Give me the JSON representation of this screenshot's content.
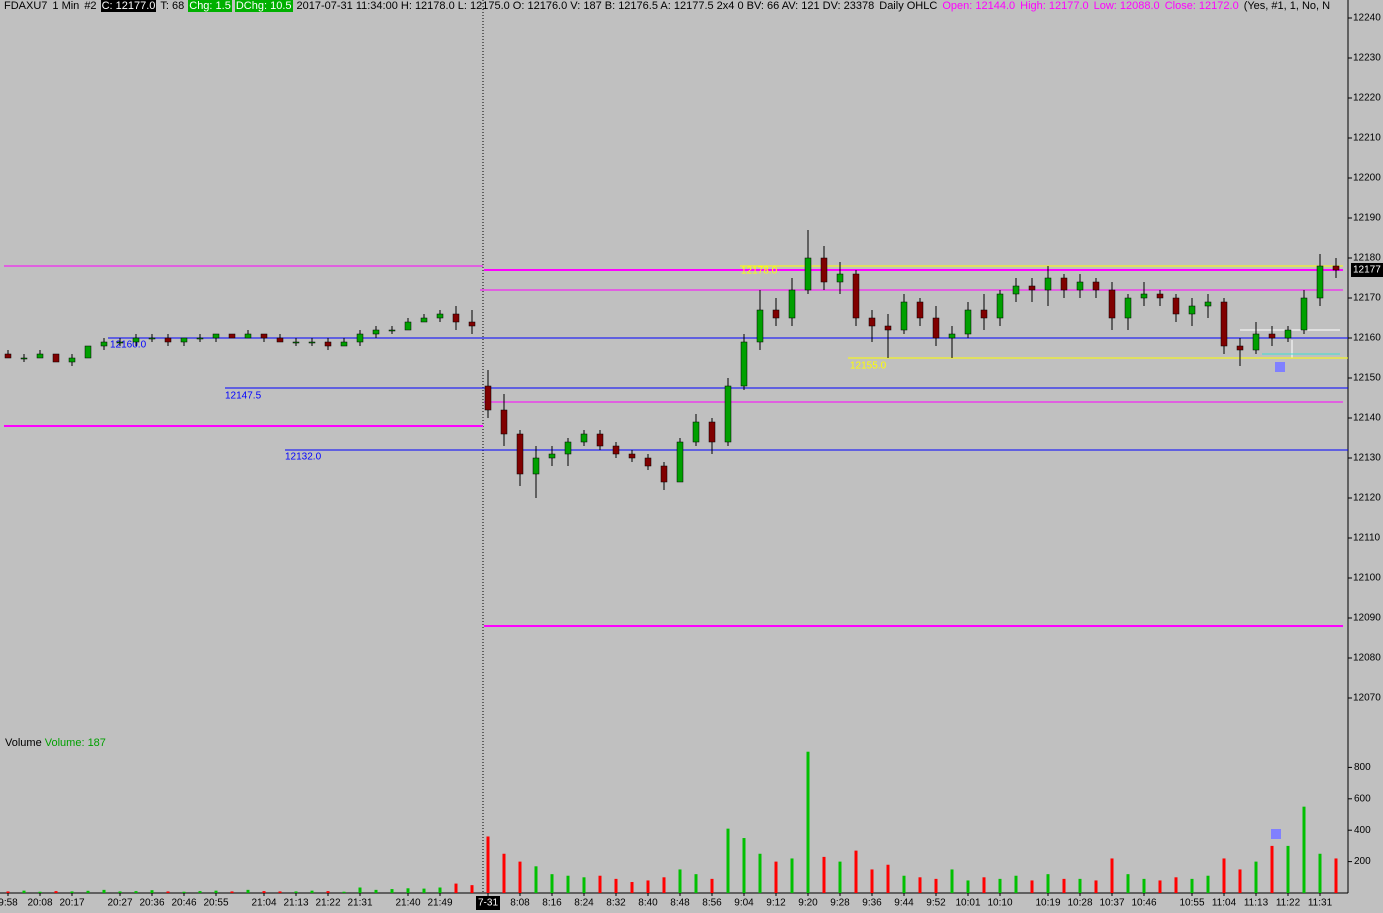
{
  "header": {
    "symbol": "FDAXU7",
    "interval": "1 Min",
    "chart_no": "#2",
    "close": "C: 12177.0",
    "trades": "T: 68",
    "change": "Chg: 1.5",
    "daily_change": "DChg: 10.5",
    "info": "2017-07-31 11:34:00 H: 12178.0 L: 12175.0 O: 12176.0 V: 187 B: 12176.5 A: 12177.5 2x4 0 BV: 66 AV: 121 DV: 23378",
    "study": "Daily OHLC",
    "open": "Open: 12144.0",
    "high": "High: 12177.0",
    "low": "Low: 12088.0",
    "close_daily": "Close: 12172.0",
    "flags": "(Yes, #1, 1, No, N"
  },
  "chart_data": {
    "type": "candlestick",
    "categories": [
      "9:58",
      null,
      "20:08",
      null,
      "20:17",
      null,
      null,
      "20:27",
      null,
      "20:36",
      null,
      "20:46",
      null,
      "20:55",
      null,
      null,
      "21:04",
      null,
      "21:13",
      null,
      "21:22",
      null,
      "21:31",
      null,
      null,
      "21:40",
      null,
      "21:49",
      null,
      null,
      "7-31",
      null,
      "8:08",
      null,
      "8:16",
      null,
      "8:24",
      null,
      "8:32",
      null,
      "8:40",
      null,
      "8:48",
      null,
      "8:56",
      null,
      "9:04",
      null,
      "9:12",
      null,
      "9:20",
      null,
      "9:28",
      null,
      "9:36",
      null,
      "9:44",
      null,
      "9:52",
      null,
      "10:01",
      null,
      "10:10",
      null,
      null,
      "10:19",
      null,
      "10:28",
      null,
      "10:37",
      null,
      "10:46",
      null,
      null,
      "10:55",
      null,
      "11:04",
      null,
      "11:13",
      null,
      "11:22",
      null,
      "11:31",
      null
    ],
    "open": [
      12156,
      12155,
      12155,
      12156,
      12154,
      12155,
      12158,
      12159,
      12159,
      12160,
      12160,
      12159,
      12160,
      12160,
      12161,
      12160,
      12161,
      12160,
      12159,
      12159,
      12159,
      12158,
      12159,
      12161,
      12162,
      12162,
      12164,
      12165,
      12166,
      12164,
      12148,
      12142,
      12136,
      12126,
      12130,
      12131,
      12134,
      12136,
      12133,
      12131,
      12130,
      12128,
      12124,
      12134,
      12139,
      12134,
      12148,
      12159,
      12167,
      12165,
      12172,
      12180,
      12174,
      12176,
      12165,
      12163,
      12162,
      12169,
      12165,
      12160,
      12161,
      12167,
      12165,
      12171,
      12173,
      12172,
      12175,
      12172,
      12174,
      12172,
      12165,
      12170,
      12171,
      12170,
      12166,
      12168,
      12169,
      12158,
      12157,
      12161,
      12160,
      12162,
      12170,
      12178
    ],
    "high": [
      12157,
      12156,
      12157,
      12156,
      12156,
      12158,
      12160,
      12160,
      12161,
      12161,
      12161,
      12160,
      12161,
      12161,
      12161,
      12162,
      12161,
      12161,
      12160,
      12160,
      12160,
      12160,
      12162,
      12163,
      12163,
      12165,
      12166,
      12167,
      12168,
      12167,
      12152,
      12146,
      12137,
      12133,
      12133,
      12135,
      12137,
      12137,
      12134,
      12132,
      12131,
      12129,
      12135,
      12141,
      12140,
      12150,
      12161,
      12172,
      12170,
      12175,
      12187,
      12183,
      12179,
      12177,
      12167,
      12166,
      12171,
      12170,
      12168,
      12163,
      12169,
      12171,
      12172,
      12175,
      12175,
      12178,
      12176,
      12176,
      12175,
      12174,
      12171,
      12174,
      12172,
      12171,
      12170,
      12171,
      12170,
      12160,
      12164,
      12163,
      12163,
      12172,
      12181,
      12180
    ],
    "low": [
      12155,
      12154,
      12155,
      12154,
      12153,
      12155,
      12157,
      12158,
      12158,
      12159,
      12158,
      12158,
      12159,
      12159,
      12160,
      12160,
      12159,
      12159,
      12158,
      12158,
      12157,
      12158,
      12158,
      12160,
      12161,
      12162,
      12164,
      12164,
      12162,
      12161,
      12140,
      12133,
      12123,
      12120,
      12128,
      12128,
      12133,
      12132,
      12130,
      12129,
      12127,
      12122,
      12124,
      12133,
      12131,
      12133,
      12147,
      12157,
      12163,
      12163,
      12171,
      12172,
      12171,
      12163,
      12159,
      12155,
      12161,
      12163,
      12158,
      12155,
      12160,
      12162,
      12163,
      12169,
      12169,
      12168,
      12170,
      12170,
      12170,
      12162,
      12162,
      12168,
      12168,
      12164,
      12163,
      12165,
      12156,
      12153,
      12156,
      12158,
      12159,
      12161,
      12168,
      12175
    ],
    "close": [
      12155,
      12155,
      12156,
      12154,
      12155,
      12158,
      12159,
      12159,
      12160,
      12160,
      12159,
      12160,
      12160,
      12161,
      12160,
      12161,
      12160,
      12159,
      12159,
      12159,
      12158,
      12159,
      12161,
      12162,
      12162,
      12164,
      12165,
      12166,
      12164,
      12163,
      12142,
      12136,
      12126,
      12130,
      12131,
      12134,
      12136,
      12133,
      12131,
      12130,
      12128,
      12124,
      12134,
      12139,
      12134,
      12148,
      12159,
      12167,
      12165,
      12172,
      12180,
      12174,
      12176,
      12165,
      12163,
      12162,
      12169,
      12165,
      12160,
      12161,
      12167,
      12165,
      12171,
      12173,
      12172,
      12175,
      12172,
      12174,
      12172,
      12165,
      12170,
      12171,
      12170,
      12166,
      12168,
      12169,
      12158,
      12157,
      12161,
      12160,
      12162,
      12170,
      12178,
      12177
    ],
    "up_color": "#00a000",
    "down_color": "#800000",
    "ylim": [
      12059.5,
      12244.5
    ],
    "yticks": [
      12240,
      12230,
      12220,
      12210,
      12200,
      12190,
      12180,
      12170,
      12160,
      12150,
      12140,
      12130,
      12120,
      12110,
      12100,
      12090,
      12080,
      12070
    ],
    "last_price_label": "12177",
    "levels": [
      {
        "value": 12178,
        "color": "#ff00ff"
      },
      {
        "value": 12177,
        "color": "#ff00ff"
      },
      {
        "value": 12172,
        "color": "#ff00ff"
      },
      {
        "value": 12160,
        "color": "#0000ff",
        "label": "12160.0"
      },
      {
        "value": 12147.5,
        "color": "#0000ff",
        "label": "12147.5"
      },
      {
        "value": 12132,
        "color": "#0000ff",
        "label": "12132.0"
      },
      {
        "value": 12144,
        "color": "#ff00ff"
      },
      {
        "value": 12138,
        "color": "#ff00ff"
      },
      {
        "value": 12088,
        "color": "#ff00ff"
      },
      {
        "value": 12178,
        "color": "#ffff00",
        "label": "12178.0"
      },
      {
        "value": 12155,
        "color": "#ffff00",
        "label": "12155.0"
      }
    ],
    "volume": {
      "title": "Volume",
      "label": "Volume: 187",
      "up_color": "#00c000",
      "down_color": "#ff0000",
      "values": [
        10,
        15,
        8,
        12,
        10,
        14,
        20,
        10,
        12,
        18,
        10,
        8,
        12,
        15,
        10,
        20,
        12,
        10,
        10,
        15,
        12,
        8,
        35,
        20,
        25,
        30,
        28,
        35,
        60,
        50,
        360,
        250,
        200,
        170,
        120,
        110,
        100,
        110,
        90,
        70,
        80,
        100,
        150,
        120,
        90,
        410,
        350,
        250,
        200,
        220,
        900,
        230,
        200,
        270,
        150,
        180,
        110,
        100,
        90,
        150,
        80,
        100,
        90,
        110,
        80,
        120,
        90,
        90,
        80,
        220,
        120,
        90,
        80,
        100,
        90,
        110,
        220,
        150,
        200,
        300,
        300,
        550,
        250,
        220
      ],
      "ylim": [
        0,
        930
      ],
      "yticks": [
        200,
        400,
        600,
        800
      ]
    }
  }
}
